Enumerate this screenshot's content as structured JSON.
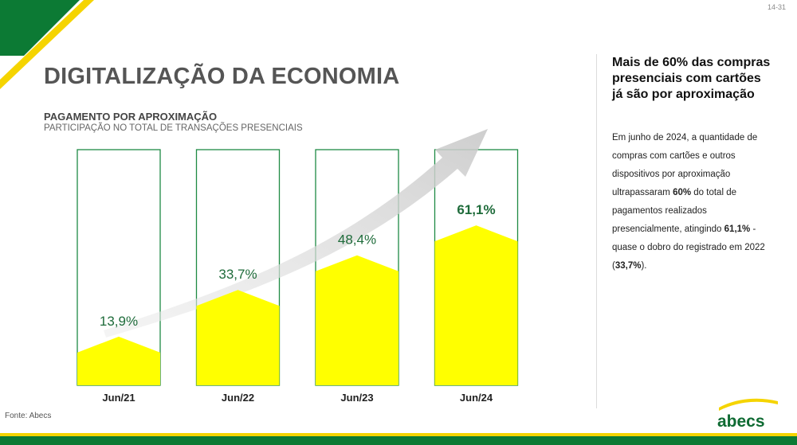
{
  "slide": {
    "number": "14-31"
  },
  "title": "DIGITALIZAÇÃO DA ECONOMIA",
  "chart_data": {
    "type": "bar",
    "title": "PAGAMENTO POR APROXIMAÇÃO",
    "subtitle": "PARTICIPAÇÃO NO TOTAL DE TRANSAÇÕES PRESENCIAIS",
    "categories": [
      "Jun/21",
      "Jun/22",
      "Jun/23",
      "Jun/24"
    ],
    "values": [
      13.9,
      33.7,
      48.4,
      61.1
    ],
    "value_labels": [
      "13,9%",
      "33,7%",
      "48,4%",
      "61,1%"
    ],
    "ylim": [
      0,
      100
    ],
    "unit": "%",
    "grid": false,
    "fill_color": "#FFFF00",
    "outline_color": "#1e8a44"
  },
  "sidebar": {
    "headline": "Mais de 60% das compras presenciais com cartões já são por aproximação",
    "body_parts": [
      "Em junho de 2024, a quantidade de compras com cartões e outros dispositivos por aproximação ultrapassaram ",
      "60%",
      " do total de pagamentos realizados presencialmente, atingindo ",
      "61,1%",
      " - quase o dobro do registrado em 2022 (",
      "33,7%",
      ")."
    ]
  },
  "source": "Fonte: Abecs",
  "logo": {
    "text": "abecs",
    "color": "#0f6b33",
    "accent": "#f5d400"
  },
  "colors": {
    "brand_green": "#0c7a34",
    "brand_yellow": "#f5d400",
    "title_gray": "#555555"
  }
}
